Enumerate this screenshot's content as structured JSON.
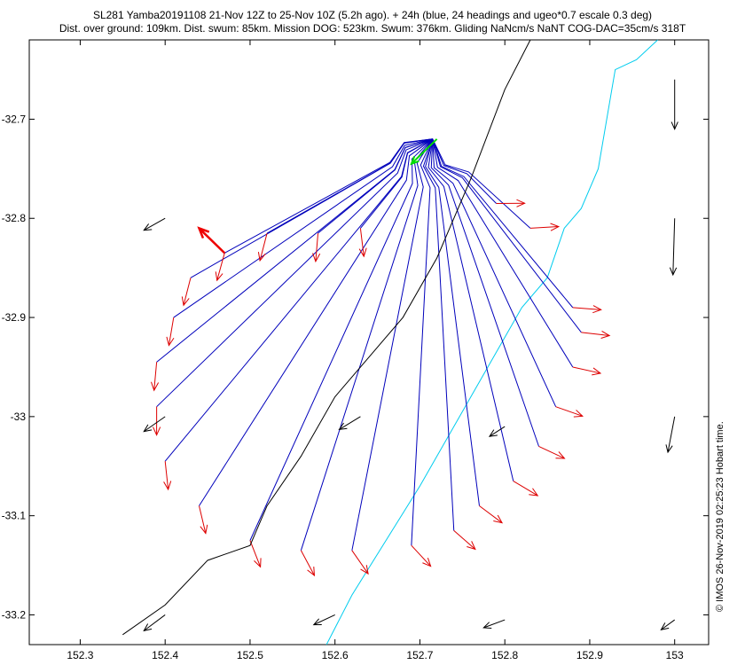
{
  "chart_data": {
    "type": "line",
    "title": "SL281 Yamba20191108 21-Nov 12Z to 25-Nov 10Z (5.2h ago). + 24h (blue, 24 headings and ugeo*0.7 escale 0.3 deg)",
    "subtitle": "Dist. over ground: 109km. Dist. swum: 85km. Mission DOG: 523km. Swum: 376km. Gliding NaNcm/s NaNT COG-DAC=35cm/s 318T",
    "credit": "© IMOS 26-Nov-2019 02:25:23 Hobart time.",
    "xlabel": "",
    "ylabel": "",
    "xlim": [
      152.24,
      153.04
    ],
    "ylim": [
      -33.23,
      -32.62
    ],
    "xticks": [
      152.3,
      152.4,
      152.5,
      152.6,
      152.7,
      152.8,
      152.9,
      153
    ],
    "xtick_labels": [
      "152.3",
      "152.4",
      "152.5",
      "152.6",
      "152.7",
      "152.8",
      "152.9",
      "153"
    ],
    "yticks": [
      -32.7,
      -32.8,
      -32.9,
      -33,
      -33.1,
      -33.2
    ],
    "ytick_labels": [
      "-32.7",
      "-32.8",
      "-32.9",
      "-33",
      "-33.1",
      "-33.2"
    ],
    "colors": {
      "track": "#000000",
      "isobath": "#00ccee",
      "projection": "#0000bb",
      "projection_arrow": "#dd0000",
      "current": "#000000",
      "recent_track": "#00dd00",
      "drift_arrow": "#ee0000"
    },
    "track": {
      "name": "glider track",
      "x": [
        152.35,
        152.4,
        152.45,
        152.5,
        152.52,
        152.56,
        152.6,
        152.64,
        152.68,
        152.72,
        152.76,
        152.8,
        152.83
      ],
      "y": [
        -33.22,
        -33.19,
        -33.145,
        -33.13,
        -33.09,
        -33.04,
        -32.98,
        -32.94,
        -32.9,
        -32.84,
        -32.76,
        -32.67,
        -32.62
      ]
    },
    "isobath": {
      "x": [
        152.59,
        152.62,
        152.7,
        152.76,
        152.82,
        152.85,
        152.87,
        152.89,
        152.91,
        152.93,
        152.955,
        152.98
      ],
      "y": [
        -33.23,
        -33.18,
        -33.07,
        -32.98,
        -32.89,
        -32.86,
        -32.81,
        -32.79,
        -32.75,
        -32.65,
        -32.64,
        -32.62
      ]
    },
    "recent_track": {
      "x": [
        152.72,
        152.69
      ],
      "y": [
        -32.72,
        -32.745
      ]
    },
    "drift_arrow": {
      "x": [
        152.47,
        152.44
      ],
      "y": [
        -32.835,
        -32.81
      ]
    },
    "projections": {
      "origin": [
        152.715,
        -32.72
      ],
      "endpoints": [
        [
          152.43,
          -32.86
        ],
        [
          152.41,
          -32.9
        ],
        [
          152.39,
          -32.945
        ],
        [
          152.39,
          -32.99
        ],
        [
          152.4,
          -33.045
        ],
        [
          152.44,
          -33.09
        ],
        [
          152.5,
          -33.125
        ],
        [
          152.56,
          -33.135
        ],
        [
          152.62,
          -33.135
        ],
        [
          152.69,
          -33.13
        ],
        [
          152.74,
          -33.115
        ],
        [
          152.77,
          -33.09
        ],
        [
          152.81,
          -33.065
        ],
        [
          152.84,
          -33.03
        ],
        [
          152.86,
          -32.99
        ],
        [
          152.88,
          -32.95
        ],
        [
          152.89,
          -32.915
        ],
        [
          152.88,
          -32.89
        ],
        [
          152.83,
          -32.81
        ],
        [
          152.79,
          -32.785
        ],
        [
          152.47,
          -32.835
        ],
        [
          152.52,
          -32.815
        ],
        [
          152.58,
          -32.815
        ],
        [
          152.63,
          -32.81
        ]
      ]
    },
    "currents": [
      {
        "x": 152.4,
        "y": -32.8,
        "u": -0.025,
        "v": -0.012
      },
      {
        "x": 153.0,
        "y": -32.66,
        "u": 0.0,
        "v": -0.05
      },
      {
        "x": 153.0,
        "y": -32.8,
        "u": -0.002,
        "v": -0.057
      },
      {
        "x": 152.4,
        "y": -33.0,
        "u": -0.025,
        "v": -0.015
      },
      {
        "x": 152.63,
        "y": -33.0,
        "u": -0.025,
        "v": -0.013
      },
      {
        "x": 152.8,
        "y": -33.01,
        "u": -0.018,
        "v": -0.01
      },
      {
        "x": 153.0,
        "y": -33.0,
        "u": -0.008,
        "v": -0.036
      },
      {
        "x": 152.4,
        "y": -33.2,
        "u": -0.025,
        "v": -0.016
      },
      {
        "x": 152.6,
        "y": -33.2,
        "u": -0.025,
        "v": -0.01
      },
      {
        "x": 152.8,
        "y": -33.205,
        "u": -0.025,
        "v": -0.008
      },
      {
        "x": 153.0,
        "y": -33.205,
        "u": -0.016,
        "v": -0.01
      }
    ]
  }
}
